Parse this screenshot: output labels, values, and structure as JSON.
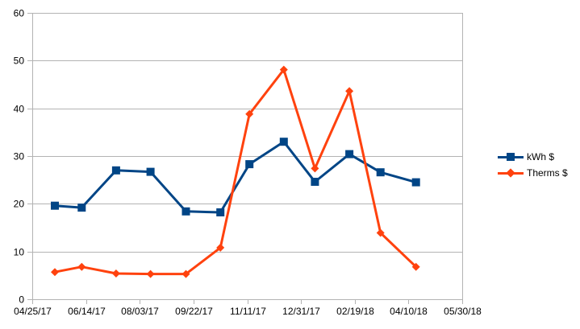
{
  "chart_data": {
    "type": "line",
    "x_type": "date",
    "xlim": [
      "04/25/17",
      "05/30/18"
    ],
    "x_ticks": [
      "04/25/17",
      "06/14/17",
      "08/03/17",
      "09/22/17",
      "11/11/17",
      "12/31/17",
      "02/19/18",
      "04/10/18",
      "05/30/18"
    ],
    "ylim": [
      0,
      60
    ],
    "y_ticks": [
      "0",
      "10",
      "20",
      "30",
      "40",
      "50",
      "60"
    ],
    "grid": true,
    "legend": "right",
    "series": [
      {
        "name": "kWh $",
        "color": "#004586",
        "marker": "square",
        "points": [
          {
            "x": "05/16/17",
            "y": 19.6
          },
          {
            "x": "06/10/17",
            "y": 19.2
          },
          {
            "x": "07/12/17",
            "y": 27.0
          },
          {
            "x": "08/13/17",
            "y": 26.7
          },
          {
            "x": "09/15/17",
            "y": 18.4
          },
          {
            "x": "10/17/17",
            "y": 18.2
          },
          {
            "x": "11/13/17",
            "y": 28.3
          },
          {
            "x": "12/15/17",
            "y": 33.0
          },
          {
            "x": "01/13/18",
            "y": 24.6
          },
          {
            "x": "02/14/18",
            "y": 30.4
          },
          {
            "x": "03/15/18",
            "y": 26.6
          },
          {
            "x": "04/17/18",
            "y": 24.5
          }
        ]
      },
      {
        "name": "Therms $",
        "color": "#ff420e",
        "marker": "diamond",
        "points": [
          {
            "x": "05/16/17",
            "y": 5.7
          },
          {
            "x": "06/10/17",
            "y": 6.8
          },
          {
            "x": "07/12/17",
            "y": 5.4
          },
          {
            "x": "08/13/17",
            "y": 5.3
          },
          {
            "x": "09/15/17",
            "y": 5.3
          },
          {
            "x": "10/17/17",
            "y": 10.8
          },
          {
            "x": "11/13/17",
            "y": 38.8
          },
          {
            "x": "12/15/17",
            "y": 48.1
          },
          {
            "x": "01/13/18",
            "y": 27.4
          },
          {
            "x": "02/14/18",
            "y": 43.6
          },
          {
            "x": "03/15/18",
            "y": 13.9
          },
          {
            "x": "04/17/18",
            "y": 6.8
          }
        ]
      }
    ]
  }
}
